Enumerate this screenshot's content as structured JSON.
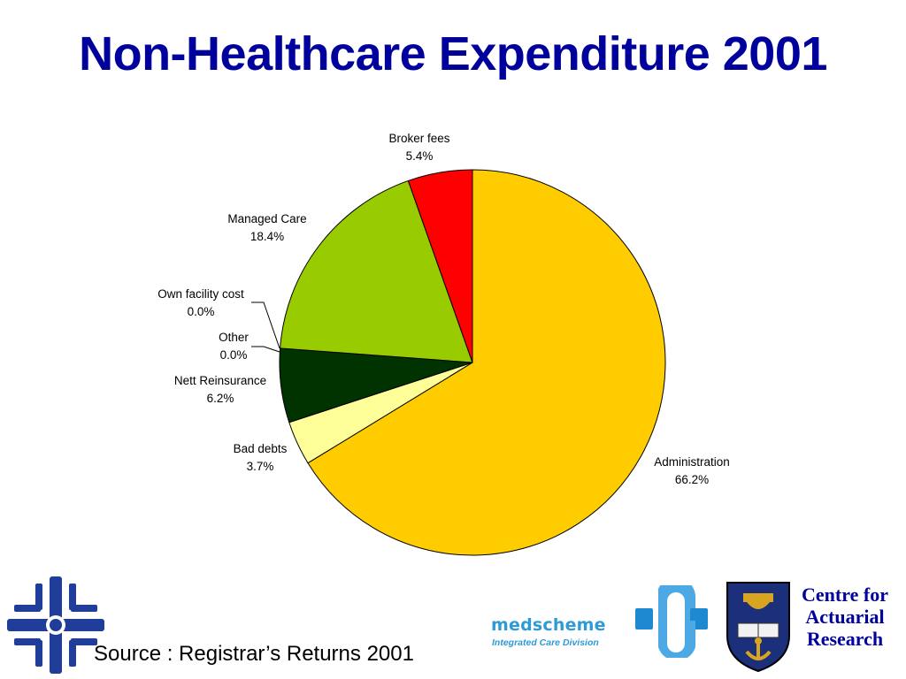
{
  "title": "Non-Healthcare Expenditure 2001",
  "source": "Source : Registrar’s Returns 2001",
  "logos": {
    "medscheme_name": "medscheme",
    "medscheme_tagline": "Integrated Care Division",
    "car_line1": "Centre for",
    "car_line2": "Actuarial",
    "car_line3": "Research"
  },
  "chart_data": {
    "type": "pie",
    "title": "Non-Healthcare Expenditure 2001",
    "start": "12 o'clock",
    "direction": "clockwise",
    "slices": [
      {
        "label": "Administration",
        "value": 66.2,
        "value_label": "66.2%",
        "color": "#ffcc00"
      },
      {
        "label": "Bad debts",
        "value": 3.7,
        "value_label": "3.7%",
        "color": "#ffff99"
      },
      {
        "label": "Nett Reinsurance",
        "value": 6.2,
        "value_label": "6.2%",
        "color": "#003300"
      },
      {
        "label": "Other",
        "value": 0.0,
        "value_label": "0.0%",
        "color": "#808080"
      },
      {
        "label": "Own facility cost",
        "value": 0.0,
        "value_label": "0.0%",
        "color": "#c0c0c0"
      },
      {
        "label": "Managed Care",
        "value": 18.4,
        "value_label": "18.4%",
        "color": "#99cc00"
      },
      {
        "label": "Broker fees",
        "value": 5.4,
        "value_label": "5.4%",
        "color": "#ff0000"
      }
    ],
    "legend": "none"
  }
}
